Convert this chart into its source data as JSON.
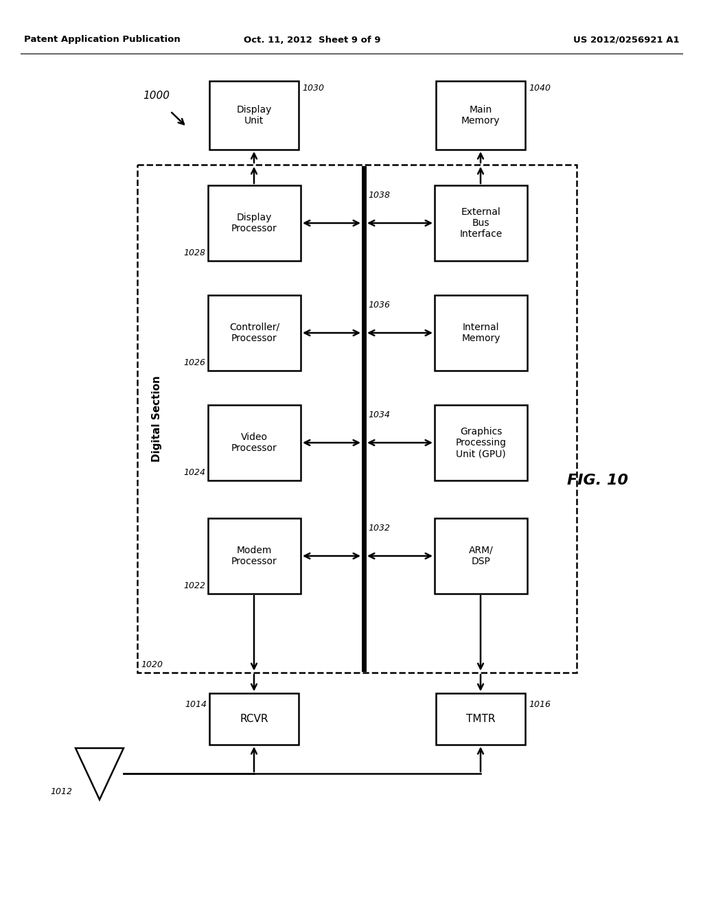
{
  "bg": "#ffffff",
  "header_left": "Patent Application Publication",
  "header_mid": "Oct. 11, 2012  Sheet 9 of 9",
  "header_right": "US 2012/0256921 A1",
  "fig_label": "FIG. 10",
  "lbl_1000": "1000",
  "lbl_1012": "1012",
  "lbl_1014": "1014",
  "lbl_1016": "1016",
  "lbl_1020": "1020",
  "lbl_1022": "1022",
  "lbl_1024": "1024",
  "lbl_1026": "1026",
  "lbl_1028": "1028",
  "lbl_1030": "1030",
  "lbl_1032": "1032",
  "lbl_1034": "1034",
  "lbl_1036": "1036",
  "lbl_1038": "1038",
  "lbl_1040": "1040",
  "txt_modem": "Modem\nProcessor",
  "txt_video": "Video\nProcessor",
  "txt_ctrl": "Controller/\nProcessor",
  "txt_disp_proc": "Display\nProcessor",
  "txt_arm": "ARM/\nDSP",
  "txt_gpu": "Graphics\nProcessing\nUnit (GPU)",
  "txt_intmem": "Internal\nMemory",
  "txt_extbus": "External\nBus\nInterface",
  "txt_disp_unit": "Display\nUnit",
  "txt_mainmem": "Main\nMemory",
  "txt_rcvr": "RCVR",
  "txt_tmtr": "TMTR",
  "txt_digital": "Digital Section"
}
